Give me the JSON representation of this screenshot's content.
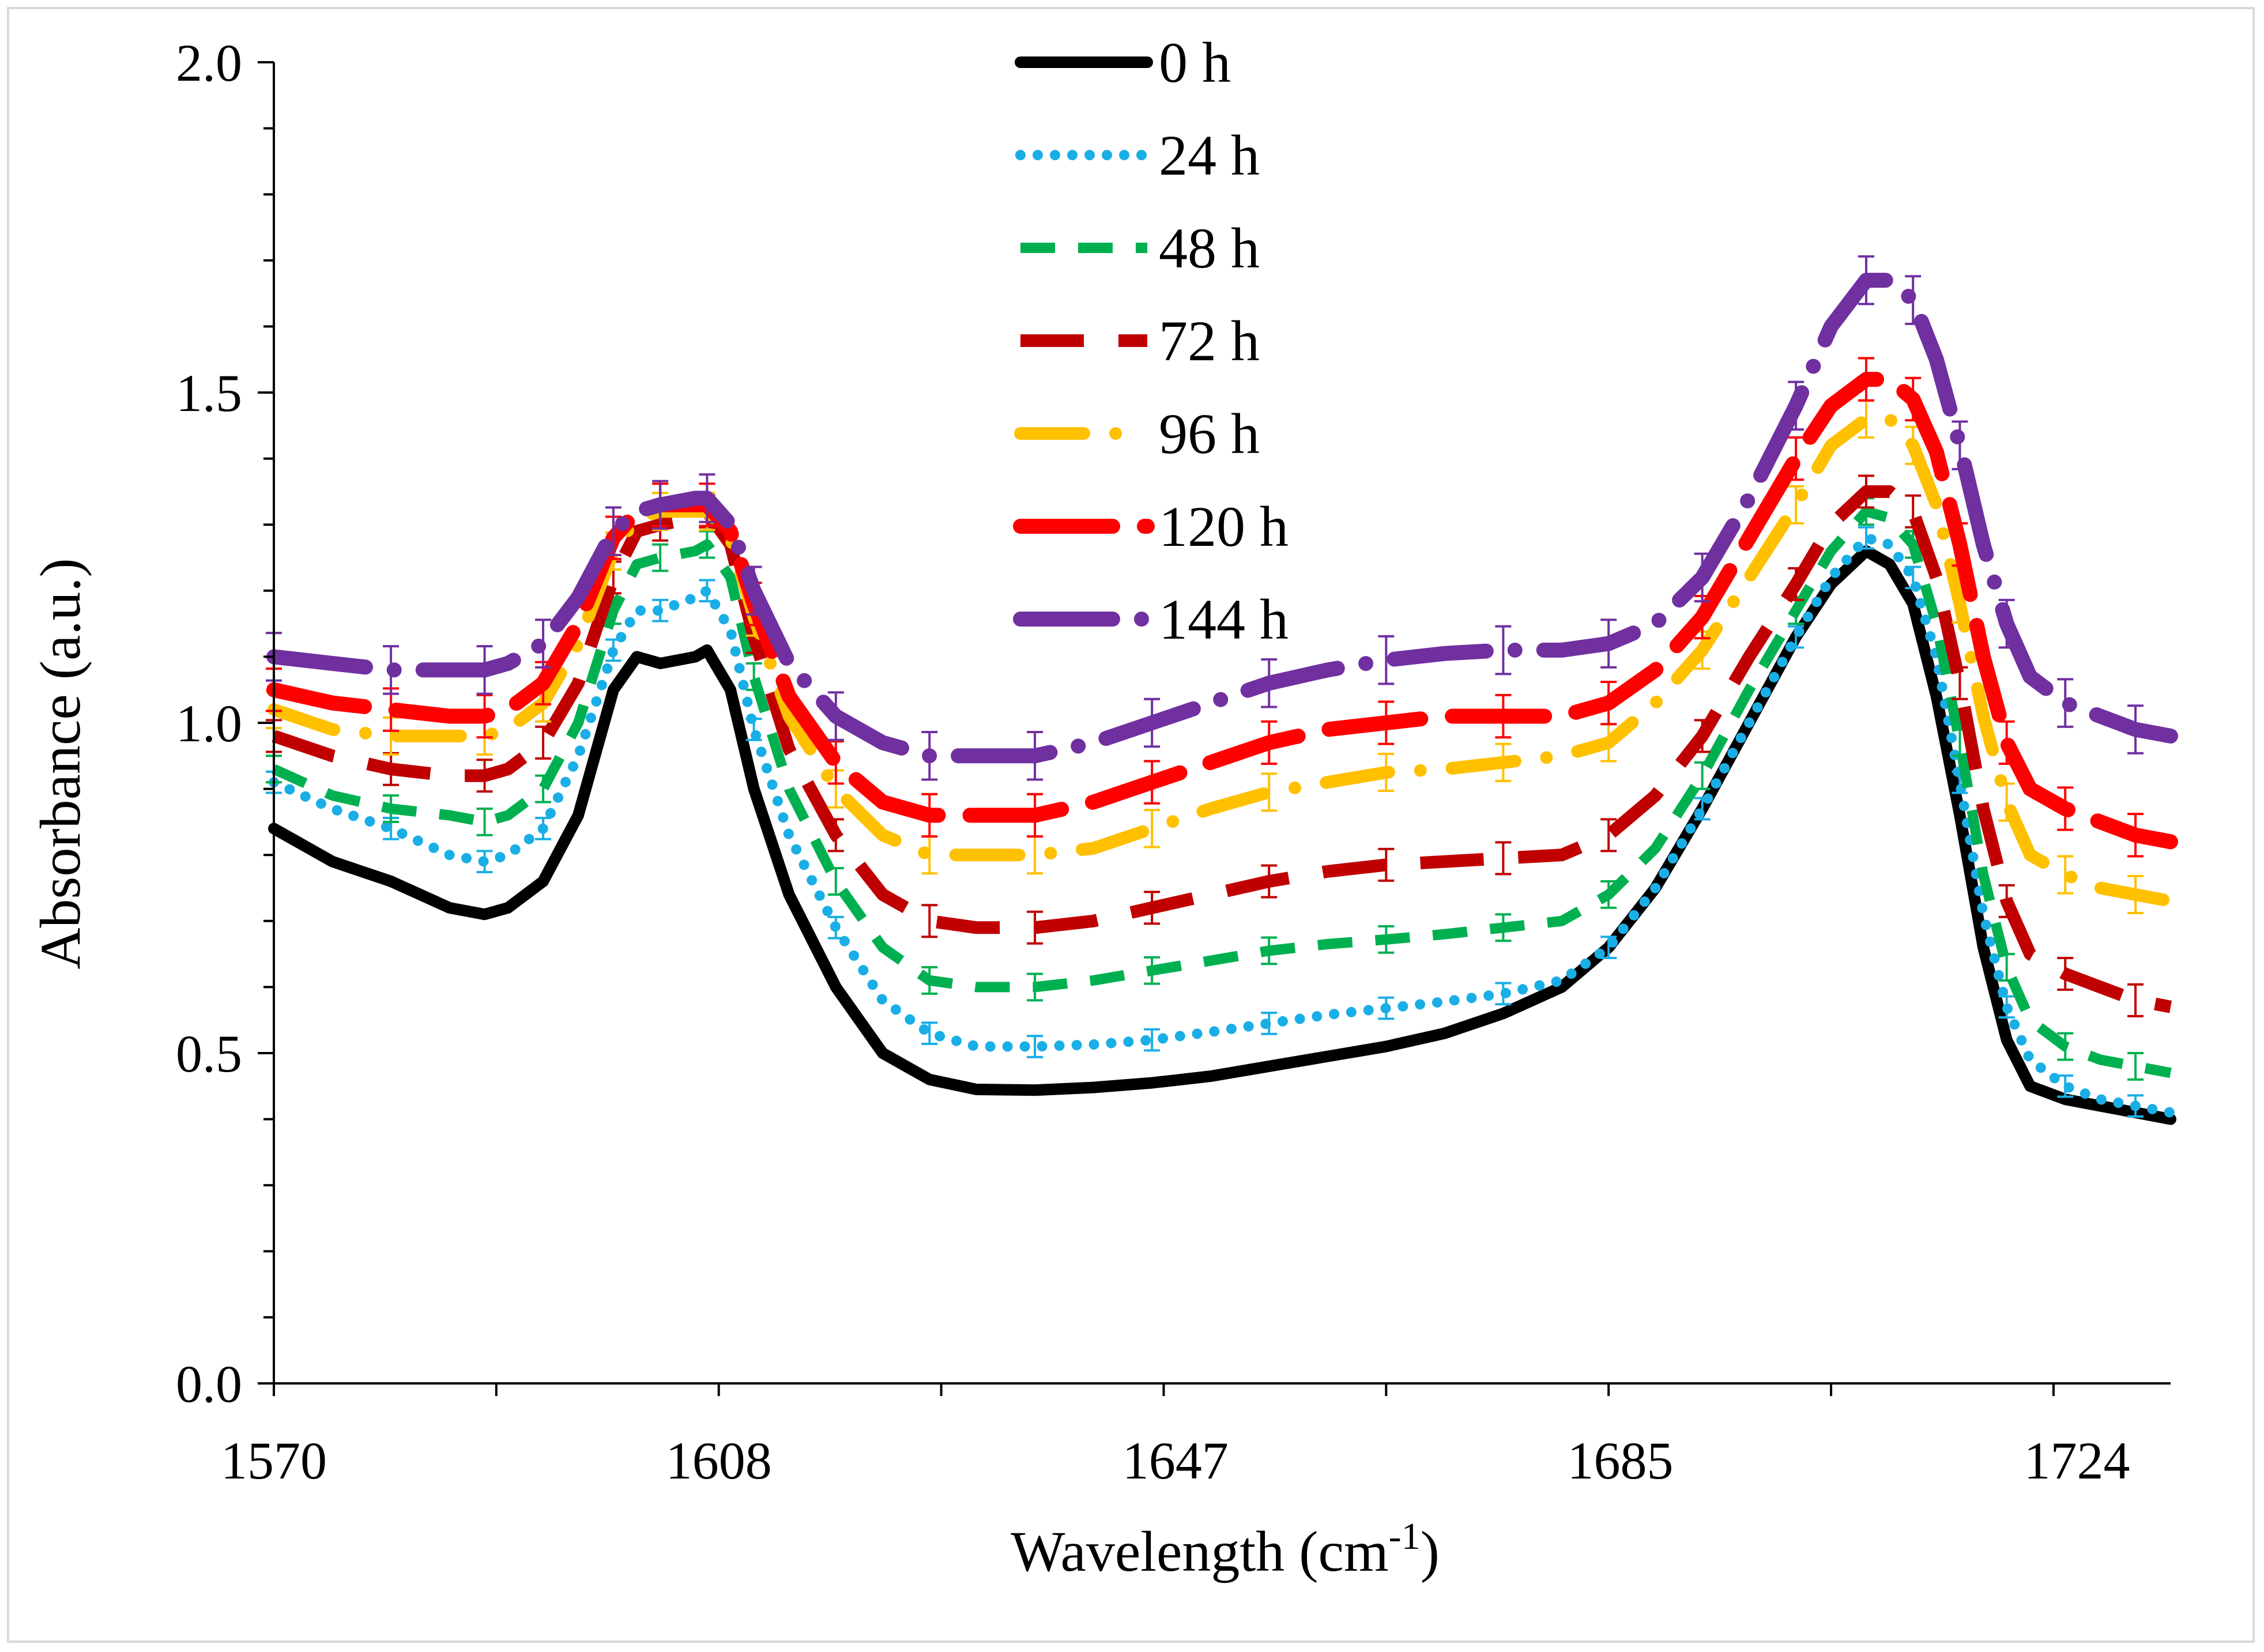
{
  "chart_data": {
    "type": "line",
    "title": "",
    "xlabel": "Wavelength (cm",
    "xlabel_sup": "-1",
    "xlabel_close": ")",
    "ylabel": "Absorbance (a.u.)",
    "xlim": [
      1570,
      1732
    ],
    "ylim": [
      0.0,
      2.0
    ],
    "x_ticks": [
      1570,
      1608,
      1647,
      1685,
      1724
    ],
    "y_ticks": [
      "0.0",
      "0.5",
      "1.0",
      "1.5",
      "2.0"
    ],
    "legend_position": "top-center",
    "x": [
      1570,
      1575,
      1580,
      1585,
      1588,
      1590,
      1593,
      1596,
      1599,
      1601,
      1603,
      1606,
      1607,
      1609,
      1611,
      1614,
      1618,
      1622,
      1626,
      1630,
      1635,
      1640,
      1645,
      1650,
      1655,
      1660,
      1665,
      1670,
      1675,
      1680,
      1684,
      1688,
      1692,
      1696,
      1700,
      1703,
      1706,
      1708,
      1710,
      1712,
      1714,
      1716,
      1718,
      1720,
      1723,
      1726,
      1729,
      1732
    ],
    "series": [
      {
        "name": "0 h",
        "color": "#000000",
        "dash": "solid",
        "values": [
          0.84,
          0.79,
          0.76,
          0.72,
          0.71,
          0.72,
          0.76,
          0.86,
          1.05,
          1.1,
          1.09,
          1.1,
          1.11,
          1.05,
          0.9,
          0.74,
          0.6,
          0.5,
          0.46,
          0.445,
          0.444,
          0.448,
          0.455,
          0.465,
          0.48,
          0.495,
          0.51,
          0.53,
          0.56,
          0.6,
          0.66,
          0.75,
          0.87,
          1.0,
          1.13,
          1.21,
          1.26,
          1.24,
          1.18,
          1.04,
          0.86,
          0.66,
          0.52,
          0.45,
          0.43,
          0.42,
          0.41,
          0.4
        ]
      },
      {
        "name": "24 h",
        "color": "#1aaee6",
        "dash": "dots",
        "values": [
          0.91,
          0.87,
          0.84,
          0.8,
          0.79,
          0.8,
          0.84,
          0.95,
          1.11,
          1.17,
          1.17,
          1.19,
          1.2,
          1.14,
          0.99,
          0.83,
          0.69,
          0.58,
          0.53,
          0.51,
          0.51,
          0.513,
          0.52,
          0.532,
          0.545,
          0.558,
          0.568,
          0.578,
          0.59,
          0.61,
          0.66,
          0.75,
          0.87,
          1.0,
          1.13,
          1.22,
          1.28,
          1.27,
          1.22,
          1.1,
          0.91,
          0.71,
          0.57,
          0.49,
          0.45,
          0.43,
          0.42,
          0.41
        ]
      },
      {
        "name": "48 h",
        "color": "#00b050",
        "dash": "dash",
        "values": [
          0.93,
          0.89,
          0.87,
          0.86,
          0.85,
          0.86,
          0.9,
          1.0,
          1.17,
          1.24,
          1.25,
          1.26,
          1.27,
          1.22,
          1.07,
          0.9,
          0.76,
          0.66,
          0.61,
          0.6,
          0.6,
          0.61,
          0.625,
          0.64,
          0.655,
          0.665,
          0.672,
          0.68,
          0.69,
          0.7,
          0.74,
          0.81,
          0.92,
          1.05,
          1.17,
          1.26,
          1.32,
          1.31,
          1.27,
          1.15,
          0.97,
          0.77,
          0.63,
          0.55,
          0.51,
          0.49,
          0.48,
          0.47
        ]
      },
      {
        "name": "72 h",
        "color": "#c00000",
        "dash": "longdash",
        "values": [
          0.98,
          0.95,
          0.93,
          0.92,
          0.92,
          0.93,
          0.97,
          1.06,
          1.22,
          1.29,
          1.3,
          1.31,
          1.32,
          1.27,
          1.13,
          0.96,
          0.83,
          0.74,
          0.7,
          0.69,
          0.69,
          0.7,
          0.72,
          0.74,
          0.76,
          0.775,
          0.785,
          0.79,
          0.795,
          0.8,
          0.83,
          0.89,
          0.98,
          1.1,
          1.21,
          1.3,
          1.35,
          1.35,
          1.32,
          1.22,
          1.06,
          0.87,
          0.73,
          0.65,
          0.62,
          0.6,
          0.58,
          0.57
        ]
      },
      {
        "name": "96 h",
        "color": "#ffc000",
        "dash": "dashdot",
        "values": [
          1.02,
          0.99,
          0.98,
          0.98,
          0.98,
          0.99,
          1.03,
          1.12,
          1.26,
          1.31,
          1.32,
          1.32,
          1.32,
          1.28,
          1.16,
          1.01,
          0.9,
          0.83,
          0.8,
          0.8,
          0.8,
          0.81,
          0.84,
          0.87,
          0.895,
          0.91,
          0.925,
          0.93,
          0.94,
          0.95,
          0.97,
          1.03,
          1.11,
          1.22,
          1.33,
          1.42,
          1.46,
          1.46,
          1.42,
          1.33,
          1.18,
          1.01,
          0.88,
          0.8,
          0.77,
          0.75,
          0.74,
          0.73
        ]
      },
      {
        "name": "120 h",
        "color": "#ff0000",
        "dash": "longdash-thick",
        "values": [
          1.05,
          1.03,
          1.02,
          1.01,
          1.01,
          1.02,
          1.06,
          1.15,
          1.28,
          1.32,
          1.33,
          1.33,
          1.33,
          1.29,
          1.18,
          1.04,
          0.94,
          0.88,
          0.86,
          0.86,
          0.86,
          0.88,
          0.91,
          0.94,
          0.97,
          0.99,
          1.0,
          1.01,
          1.01,
          1.01,
          1.03,
          1.08,
          1.16,
          1.28,
          1.4,
          1.48,
          1.52,
          1.52,
          1.49,
          1.41,
          1.27,
          1.1,
          0.97,
          0.9,
          0.87,
          0.85,
          0.83,
          0.82
        ]
      },
      {
        "name": "144 h",
        "color": "#7030a0",
        "dash": "dashdot-thick",
        "values": [
          1.1,
          1.09,
          1.08,
          1.08,
          1.08,
          1.09,
          1.12,
          1.19,
          1.29,
          1.32,
          1.33,
          1.34,
          1.34,
          1.3,
          1.2,
          1.09,
          1.01,
          0.97,
          0.95,
          0.95,
          0.95,
          0.97,
          1.0,
          1.03,
          1.06,
          1.08,
          1.095,
          1.105,
          1.11,
          1.11,
          1.12,
          1.15,
          1.22,
          1.34,
          1.48,
          1.6,
          1.67,
          1.67,
          1.64,
          1.55,
          1.42,
          1.27,
          1.15,
          1.07,
          1.03,
          1.01,
          0.99,
          0.98
        ]
      }
    ]
  }
}
